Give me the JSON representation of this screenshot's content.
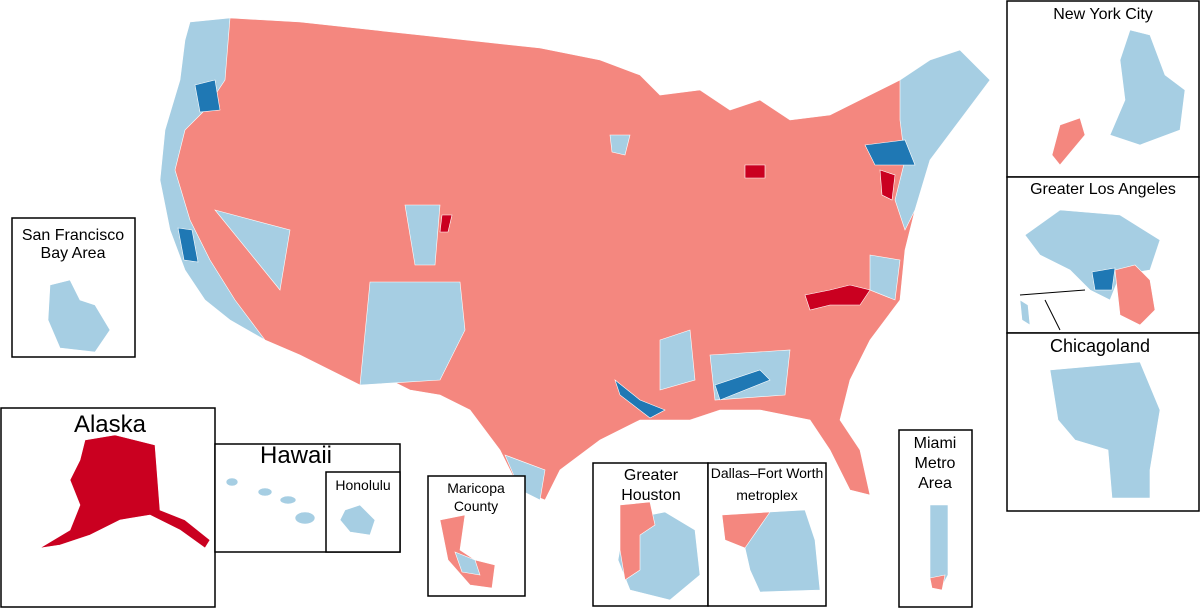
{
  "map": {
    "insets": {
      "new_york_city": {
        "lines": [
          "New York City"
        ]
      },
      "greater_los_angeles": {
        "lines": [
          "Greater Los Angeles"
        ]
      },
      "chicagoland": {
        "lines": [
          "Chicagoland"
        ]
      },
      "san_francisco": {
        "lines": [
          "San Francisco",
          "Bay Area"
        ]
      },
      "alaska": {
        "lines": [
          "Alaska"
        ]
      },
      "hawaii": {
        "lines": [
          "Hawaii"
        ]
      },
      "honolulu": {
        "lines": [
          "Honolulu"
        ]
      },
      "maricopa": {
        "lines": [
          "Maricopa",
          "County"
        ]
      },
      "houston": {
        "lines": [
          "Greater",
          "Houston"
        ]
      },
      "dallas": {
        "lines": [
          "Dallas–Fort Worth",
          "metroplex"
        ]
      },
      "miami": {
        "lines": [
          "Miami",
          "Metro",
          "Area"
        ]
      }
    }
  }
}
